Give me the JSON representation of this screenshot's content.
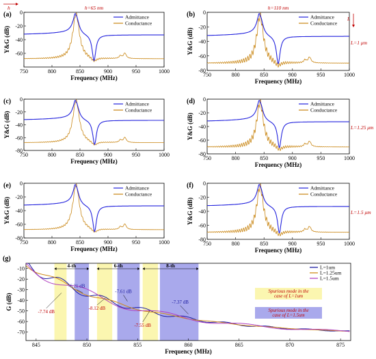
{
  "colors": {
    "admittance": "#2222dd",
    "conductance": "#c88410",
    "red": "#c00000",
    "yellow_band": "#fbf6b0",
    "blue_band": "#a9a9ec",
    "L1": "#1a1aa0",
    "L125": "#d08a18",
    "L15": "#b040c0"
  },
  "chart_data": [
    {
      "type": "line",
      "panel": "(a)",
      "xlabel": "Frequency (MHz)",
      "ylabel": "Y&G (dB)",
      "xlim": [
        750,
        1000
      ],
      "ylim": [
        -80,
        0
      ],
      "xticks": [
        "750",
        "800",
        "850",
        "900",
        "950",
        "1000"
      ],
      "yticks": [
        "0",
        "-20",
        "-40",
        "-60"
      ],
      "series": [
        {
          "name": "Admittance"
        },
        {
          "name": "Conductance"
        }
      ],
      "top_label": "h=65 nm",
      "side_label": "",
      "arrow_label": "h",
      "resonance": 843,
      "antiresonance": 875,
      "g_base": -68,
      "ripple": 3,
      "spur": 930
    },
    {
      "type": "line",
      "panel": "(b)",
      "xlabel": "Frequency (MHz)",
      "ylabel": "Y&G (dB)",
      "xlim": [
        750,
        1000
      ],
      "ylim": [
        -80,
        0
      ],
      "xticks": [
        "750",
        "800",
        "850",
        "900",
        "950",
        "1000"
      ],
      "yticks": [
        "0",
        "-20",
        "-40",
        "-60",
        "-80"
      ],
      "series": [
        {
          "name": "Admittance"
        },
        {
          "name": "Conductance"
        }
      ],
      "top_label": "h=110 nm",
      "side_label": "L=1 μm",
      "arrow_label": "L",
      "resonance": 843,
      "antiresonance": 875,
      "g_base": -70,
      "ripple": 6,
      "spur": 930
    },
    {
      "type": "line",
      "panel": "(c)",
      "xlabel": "Frequency (MHz)",
      "ylabel": "Y&G (dB)",
      "xlim": [
        750,
        1000
      ],
      "ylim": [
        -80,
        0
      ],
      "xticks": [
        "750",
        "800",
        "850",
        "900",
        "950",
        "1000"
      ],
      "yticks": [
        "0",
        "-20",
        "-40",
        "-60",
        "-80"
      ],
      "series": [
        {
          "name": "Admittance"
        },
        {
          "name": "Conductance"
        }
      ],
      "top_label": "",
      "side_label": "",
      "arrow_label": "",
      "resonance": 843,
      "antiresonance": 876,
      "g_base": -68,
      "ripple": 2,
      "spur": 930
    },
    {
      "type": "line",
      "panel": "(d)",
      "xlabel": "Frequency (MHz)",
      "ylabel": "Y&G (dB)",
      "xlim": [
        750,
        1000
      ],
      "ylim": [
        -80,
        0
      ],
      "xticks": [
        "750",
        "800",
        "850",
        "900",
        "950",
        "1000"
      ],
      "yticks": [
        "0",
        "-20",
        "-40",
        "-60",
        "-80"
      ],
      "series": [
        {
          "name": "Admittance"
        },
        {
          "name": "Conductance"
        }
      ],
      "top_label": "",
      "side_label": "L=1.25 μm",
      "arrow_label": "",
      "resonance": 843,
      "antiresonance": 877,
      "g_base": -70,
      "ripple": 6,
      "spur": 930
    },
    {
      "type": "line",
      "panel": "(e)",
      "xlabel": "Frequency (MHz)",
      "ylabel": "Y&G (dB)",
      "xlim": [
        750,
        1000
      ],
      "ylim": [
        -80,
        0
      ],
      "xticks": [
        "750",
        "800",
        "850",
        "900",
        "950",
        "1000"
      ],
      "yticks": [
        "0",
        "-20",
        "-40",
        "-60",
        "-80"
      ],
      "series": [
        {
          "name": "Admittance"
        },
        {
          "name": "Conductance"
        }
      ],
      "top_label": "",
      "side_label": "",
      "arrow_label": "",
      "resonance": 843,
      "antiresonance": 876,
      "g_base": -68,
      "ripple": 2,
      "spur": 930
    },
    {
      "type": "line",
      "panel": "(f)",
      "xlabel": "Frequency (MHz)",
      "ylabel": "Y&G (dB)",
      "xlim": [
        750,
        1000
      ],
      "ylim": [
        -80,
        0
      ],
      "xticks": [
        "750",
        "800",
        "850",
        "900",
        "950",
        "1000"
      ],
      "yticks": [
        "0",
        "-20",
        "-40",
        "-60",
        "-80"
      ],
      "series": [
        {
          "name": "Admittance"
        },
        {
          "name": "Conductance"
        }
      ],
      "top_label": "",
      "side_label": "L=1.5 μm",
      "arrow_label": "",
      "resonance": 843,
      "antiresonance": 877,
      "g_base": -70,
      "ripple": 6,
      "spur": 930
    },
    {
      "type": "line",
      "panel": "(g)",
      "xlabel": "Frequency (MHz)",
      "ylabel": "G (dB)",
      "xlim": [
        844,
        876
      ],
      "ylim": [
        -78,
        -5
      ],
      "xticks": [
        "845",
        "850",
        "855",
        "860",
        "865",
        "870",
        "875"
      ],
      "yticks": [
        "-10",
        "-20",
        "-30",
        "-40",
        "-50",
        "-60",
        "-70"
      ],
      "series": [
        {
          "name": "L=1um"
        },
        {
          "name": "L=1.25um"
        },
        {
          "name": "L=1.5um"
        }
      ],
      "bands": [
        {
          "from": 846.8,
          "to": 848.0,
          "kind": "yellow"
        },
        {
          "from": 848.8,
          "to": 850.2,
          "kind": "blue"
        },
        {
          "from": 851.0,
          "to": 852.5,
          "kind": "yellow"
        },
        {
          "from": 853.0,
          "to": 855.2,
          "kind": "blue"
        },
        {
          "from": 855.5,
          "to": 857.0,
          "kind": "yellow"
        },
        {
          "from": 857.2,
          "to": 861.0,
          "kind": "blue"
        }
      ],
      "mode_labels": [
        {
          "text": "4-th",
          "from": 846.8,
          "to": 850.2
        },
        {
          "text": "6-th",
          "from": 851.0,
          "to": 855.2
        },
        {
          "text": "8-th",
          "from": 855.5,
          "to": 861.0
        }
      ],
      "annotations": [
        {
          "text": "-7.74 dB",
          "x": 846.0,
          "y": -52,
          "ax": 847.5,
          "ay": -33,
          "color": "red"
        },
        {
          "text": "-6.21 dB",
          "x": 849.0,
          "y": -28,
          "ax": 849.6,
          "ay": -33,
          "color": "blue"
        },
        {
          "text": "-8.12 dB",
          "x": 851.0,
          "y": -49,
          "ax": 851.8,
          "ay": -38,
          "color": "red"
        },
        {
          "text": "-7.61 dB",
          "x": 853.6,
          "y": -33,
          "ax": 854.0,
          "ay": -41,
          "color": "blue"
        },
        {
          "text": "-7.55 dB",
          "x": 855.5,
          "y": -65,
          "ax": 856.2,
          "ay": -50,
          "color": "red"
        },
        {
          "text": "-7.37 dB",
          "x": 859.2,
          "y": -43,
          "ax": 860.0,
          "ay": -53,
          "color": "blue"
        }
      ],
      "legend_boxes": [
        {
          "text": "Spurious mode in the case of L=1um",
          "kind": "yellow"
        },
        {
          "text": "Spurious mode in the case of L=1.5um",
          "kind": "blue"
        }
      ]
    }
  ]
}
